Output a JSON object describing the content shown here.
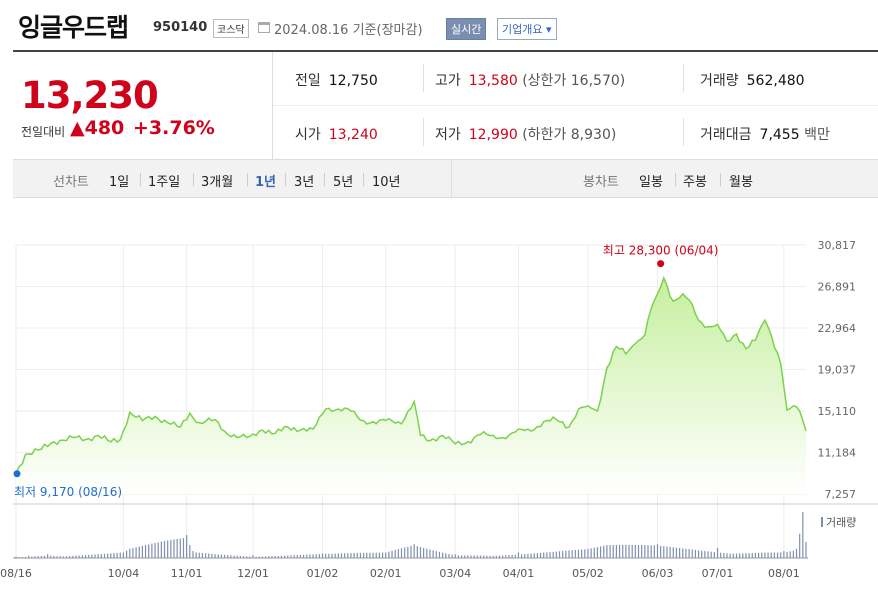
{
  "header": {
    "company": "잉글우드랩",
    "code": "950140",
    "market": "코스닥",
    "date": "2024.08.16",
    "date_suffix": "기준(장마감)",
    "realtime_label": "실시간",
    "overview_label": "기업개요 ▾"
  },
  "summary": {
    "current_price": "13,230",
    "change_label": "전일대비",
    "change_value": "▲480",
    "change_pct": "+3.76%",
    "prev_close_label": "전일",
    "prev_close": "12,750",
    "high_label": "고가",
    "high": "13,580",
    "upper_limit": "(상한가 16,570)",
    "volume_label": "거래량",
    "volume": "562,480",
    "open_label": "시가",
    "open": "13,240",
    "low_label": "저가",
    "low": "12,990",
    "lower_limit": "(하한가 8,930)",
    "amount_label": "거래대금",
    "amount": "7,455",
    "amount_unit": "백만"
  },
  "tabs": {
    "line_label": "선차트",
    "line_tabs": [
      "1일",
      "1주일",
      "3개월",
      "1년",
      "3년",
      "5년",
      "10년"
    ],
    "active": "1년",
    "candle_label": "봉차트",
    "candle_tabs": [
      "일봉",
      "주봉",
      "월봉"
    ]
  },
  "colors": {
    "up": "#d0021b",
    "line": "#7cd14d",
    "fill_top": "#c6ef9f",
    "fill_bottom": "#ffffff",
    "volume_bar": "#7f8fb0",
    "low_marker": "#1f6fd0"
  },
  "chart_data": {
    "type": "area",
    "ylim": [
      7257,
      30817
    ],
    "y_ticks": [
      "30,817",
      "26,891",
      "22,964",
      "19,037",
      "15,110",
      "11,184",
      "7,257"
    ],
    "x_ticks": [
      "08/16",
      "10/04",
      "11/01",
      "12/01",
      "01/02",
      "02/01",
      "03/04",
      "04/01",
      "05/02",
      "06/03",
      "07/01",
      "08/01"
    ],
    "x_tick_index": [
      0,
      34,
      54,
      75,
      97,
      117,
      139,
      159,
      181,
      203,
      222,
      243
    ],
    "max_label": "최고 28,300 (06/04)",
    "max_index": 204,
    "max_value": 28300,
    "min_label": "최저 9,170 (08/16)",
    "min_index": 0,
    "min_value": 9170,
    "volume_legend": "거래량",
    "price_keypoints": [
      [
        0,
        9170
      ],
      [
        3,
        11000
      ],
      [
        8,
        11500
      ],
      [
        12,
        12200
      ],
      [
        18,
        12600
      ],
      [
        22,
        12400
      ],
      [
        26,
        12800
      ],
      [
        30,
        12200
      ],
      [
        33,
        12400
      ],
      [
        36,
        15000
      ],
      [
        40,
        14200
      ],
      [
        44,
        14600
      ],
      [
        48,
        14000
      ],
      [
        52,
        13600
      ],
      [
        55,
        14900
      ],
      [
        58,
        14000
      ],
      [
        63,
        14300
      ],
      [
        66,
        13200
      ],
      [
        70,
        12600
      ],
      [
        74,
        12700
      ],
      [
        78,
        13300
      ],
      [
        82,
        13000
      ],
      [
        86,
        13600
      ],
      [
        90,
        13300
      ],
      [
        94,
        13400
      ],
      [
        98,
        15300
      ],
      [
        102,
        15300
      ],
      [
        106,
        15100
      ],
      [
        110,
        14200
      ],
      [
        114,
        13900
      ],
      [
        118,
        14400
      ],
      [
        122,
        13900
      ],
      [
        126,
        16000
      ],
      [
        128,
        12800
      ],
      [
        131,
        12300
      ],
      [
        135,
        12800
      ],
      [
        139,
        12000
      ],
      [
        143,
        12200
      ],
      [
        147,
        12900
      ],
      [
        151,
        12800
      ],
      [
        155,
        12500
      ],
      [
        159,
        13400
      ],
      [
        163,
        13200
      ],
      [
        167,
        14100
      ],
      [
        171,
        14300
      ],
      [
        175,
        13600
      ],
      [
        178,
        15300
      ],
      [
        181,
        15600
      ],
      [
        184,
        15100
      ],
      [
        187,
        19200
      ],
      [
        190,
        21200
      ],
      [
        193,
        20500
      ],
      [
        196,
        21500
      ],
      [
        199,
        22300
      ],
      [
        201,
        24800
      ],
      [
        203,
        26200
      ],
      [
        205,
        27700
      ],
      [
        208,
        25500
      ],
      [
        211,
        26200
      ],
      [
        214,
        25200
      ],
      [
        216,
        23700
      ],
      [
        219,
        23100
      ],
      [
        222,
        23300
      ],
      [
        225,
        21700
      ],
      [
        228,
        22400
      ],
      [
        231,
        21000
      ],
      [
        234,
        21800
      ],
      [
        237,
        23700
      ],
      [
        239,
        22300
      ],
      [
        242,
        19600
      ],
      [
        244,
        15200
      ],
      [
        246,
        15600
      ],
      [
        248,
        15100
      ],
      [
        250,
        13230
      ]
    ],
    "volume_keypoints": [
      [
        0,
        0.03
      ],
      [
        4,
        0.05
      ],
      [
        10,
        0.08
      ],
      [
        14,
        0.04
      ],
      [
        34,
        0.12
      ],
      [
        36,
        0.2
      ],
      [
        54,
        0.5
      ],
      [
        56,
        0.15
      ],
      [
        75,
        0.06
      ],
      [
        97,
        0.1
      ],
      [
        117,
        0.12
      ],
      [
        126,
        0.3
      ],
      [
        139,
        0.08
      ],
      [
        159,
        0.12
      ],
      [
        181,
        0.2
      ],
      [
        187,
        0.28
      ],
      [
        203,
        0.3
      ],
      [
        222,
        0.22
      ],
      [
        243,
        0.15
      ],
      [
        247,
        0.2
      ],
      [
        249,
        1.0
      ],
      [
        250,
        0.35
      ]
    ]
  }
}
